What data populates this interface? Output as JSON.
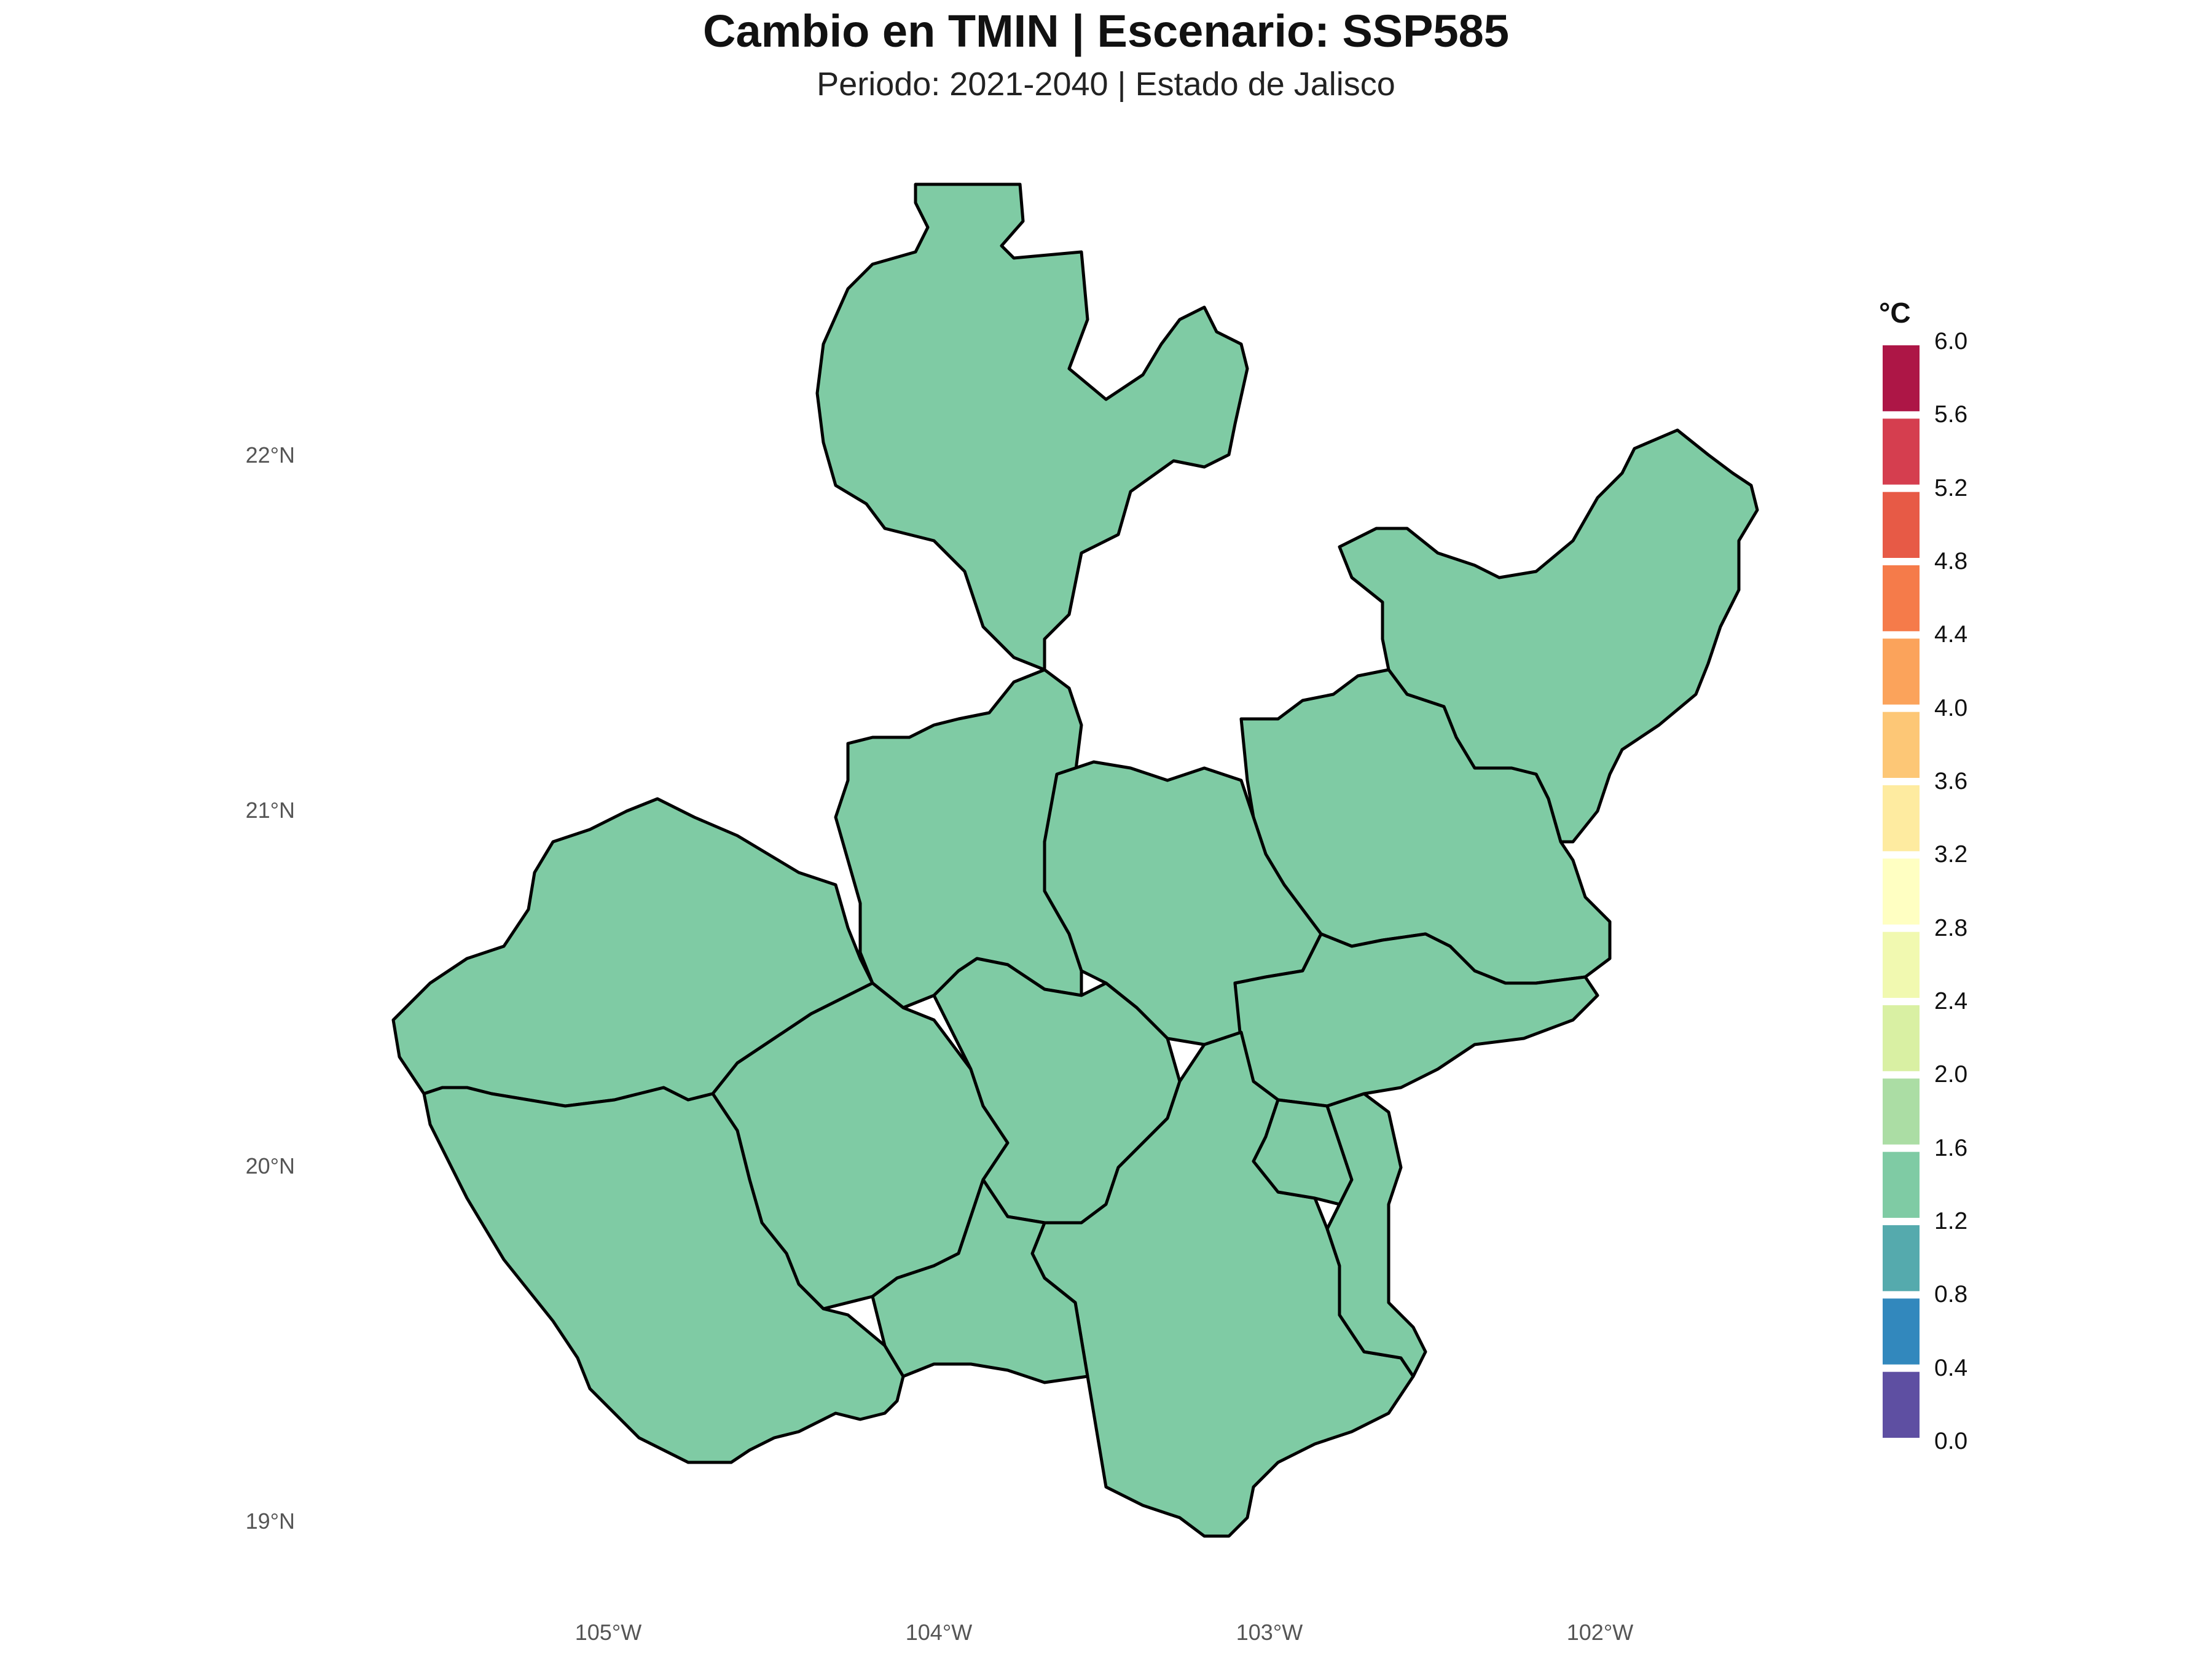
{
  "title": "Cambio en TMIN | Escenario: SSP585",
  "subtitle": "Periodo: 2021-2040 | Estado de Jalisco",
  "map_fill_color": "#7fcba4",
  "region_border_color": "#000000",
  "lat_labels": [
    "22°N",
    "21°N",
    "20°N",
    "19°N"
  ],
  "lon_labels": [
    "105°W",
    "104°W",
    "103°W",
    "102°W"
  ],
  "legend": {
    "title": "°C",
    "ticks": [
      "6.0",
      "5.6",
      "5.2",
      "4.8",
      "4.4",
      "4.0",
      "3.6",
      "3.2",
      "2.8",
      "2.4",
      "2.0",
      "1.6",
      "1.2",
      "0.8",
      "0.4",
      "0.0"
    ],
    "colors": [
      "#ad1646",
      "#d53e4f",
      "#e75a46",
      "#f57b4a",
      "#fba35b",
      "#fdc776",
      "#feeba0",
      "#ffffc2",
      "#f1f9b0",
      "#d9f0a3",
      "#abdda4",
      "#7fcba4",
      "#55aaad",
      "#3288bd",
      "#5e4fa2"
    ],
    "color_range": [
      0.0,
      6.0
    ]
  }
}
